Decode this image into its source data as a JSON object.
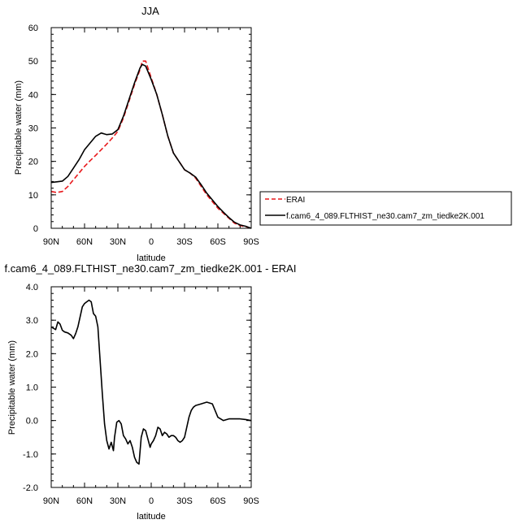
{
  "chart_data": [
    {
      "type": "line",
      "title": "JJA",
      "xlabel": "latitude",
      "ylabel": "Precipitable water (mm)",
      "xlim": [
        90,
        -90
      ],
      "ylim": [
        0,
        60
      ],
      "xticks": [
        90,
        60,
        30,
        0,
        -30,
        -60,
        -90
      ],
      "xtick_labels": [
        "90N",
        "60N",
        "30N",
        "0",
        "30S",
        "60S",
        "90S"
      ],
      "yticks": [
        0,
        10,
        20,
        30,
        40,
        50,
        60
      ],
      "ytick_labels": [
        "0",
        "10",
        "20",
        "30",
        "40",
        "50",
        "60"
      ],
      "legend_position": "right",
      "series": [
        {
          "name": "ERAI",
          "style": "dashed",
          "color": "#e8191c",
          "x": [
            90,
            85,
            80,
            75,
            70,
            65,
            60,
            55,
            50,
            45,
            40,
            35,
            30,
            25,
            20,
            15,
            10,
            8,
            5,
            0,
            -5,
            -10,
            -15,
            -20,
            -25,
            -30,
            -35,
            -40,
            -45,
            -50,
            -55,
            -60,
            -65,
            -70,
            -75,
            -80,
            -85,
            -90
          ],
          "y": [
            11,
            10.7,
            11,
            12.5,
            14.5,
            16.5,
            18.5,
            20.2,
            21.8,
            23.5,
            25.2,
            27,
            29,
            33,
            38,
            43,
            47.5,
            50,
            50,
            45,
            40,
            34,
            27.5,
            22.5,
            20,
            17.5,
            16.5,
            15,
            12.5,
            10,
            8,
            6,
            4.5,
            3,
            1.5,
            0.8,
            0.5,
            0
          ]
        },
        {
          "name": "f.cam6_4_089.FLTHIST_ne30.cam7_zm_tiedke2K.001",
          "style": "solid",
          "color": "#000000",
          "x": [
            90,
            85,
            80,
            75,
            70,
            65,
            60,
            55,
            50,
            45,
            40,
            35,
            30,
            25,
            20,
            15,
            10,
            8,
            5,
            0,
            -5,
            -10,
            -15,
            -20,
            -25,
            -30,
            -35,
            -40,
            -45,
            -50,
            -55,
            -60,
            -65,
            -70,
            -75,
            -80,
            -85,
            -90
          ],
          "y": [
            13.7,
            13.9,
            14.1,
            15.5,
            18,
            20.5,
            23.5,
            25.5,
            27.5,
            28.5,
            28,
            28.2,
            29.5,
            33.5,
            38.5,
            43.5,
            48,
            49,
            48.5,
            44.5,
            40,
            34,
            27.5,
            22.5,
            20,
            17.5,
            16.5,
            15.3,
            13,
            10.5,
            8.5,
            6.5,
            4.8,
            3.2,
            1.8,
            1,
            0.6,
            0
          ]
        }
      ]
    },
    {
      "type": "line",
      "title": "f.cam6_4_089.FLTHIST_ne30.cam7_zm_tiedke2K.001 - ERAI",
      "xlabel": "latitude",
      "ylabel": "Precipitable water (mm)",
      "xlim": [
        90,
        -90
      ],
      "ylim": [
        -2,
        4
      ],
      "xticks": [
        90,
        60,
        30,
        0,
        -30,
        -60,
        -90
      ],
      "xtick_labels": [
        "90N",
        "60N",
        "30N",
        "0",
        "30S",
        "60S",
        "90S"
      ],
      "yticks": [
        -2,
        -1,
        0,
        1,
        2,
        3,
        4
      ],
      "ytick_labels": [
        "-2.0",
        "-1.0",
        "0.0",
        "1.0",
        "2.0",
        "3.0",
        "4.0"
      ],
      "series": [
        {
          "style": "solid",
          "color": "#000000",
          "x": [
            90,
            86,
            84,
            82,
            80,
            78,
            75,
            72,
            70,
            68,
            66,
            64,
            62,
            60,
            58,
            56,
            54,
            52,
            50,
            48,
            46,
            44,
            42,
            40,
            38,
            36,
            34,
            33,
            31,
            29,
            27,
            25,
            23,
            21,
            19,
            17,
            15,
            13,
            11,
            9,
            7,
            5,
            3,
            1,
            0,
            -2,
            -4,
            -6,
            -8,
            -10,
            -12,
            -14,
            -16,
            -18,
            -20,
            -22,
            -24,
            -26,
            -28,
            -30,
            -32,
            -34,
            -36,
            -38,
            -40,
            -45,
            -50,
            -55,
            -60,
            -65,
            -70,
            -75,
            -80,
            -85,
            -90
          ],
          "y": [
            2.8,
            2.72,
            2.95,
            2.88,
            2.7,
            2.65,
            2.62,
            2.55,
            2.45,
            2.6,
            2.8,
            3.1,
            3.4,
            3.5,
            3.55,
            3.6,
            3.55,
            3.2,
            3.12,
            2.8,
            1.8,
            0.8,
            -0.1,
            -0.6,
            -0.85,
            -0.65,
            -0.9,
            -0.5,
            -0.05,
            0,
            -0.1,
            -0.45,
            -0.55,
            -0.7,
            -0.6,
            -0.8,
            -1.1,
            -1.25,
            -1.3,
            -0.5,
            -0.25,
            -0.3,
            -0.55,
            -0.8,
            -0.7,
            -0.6,
            -0.45,
            -0.2,
            -0.25,
            -0.45,
            -0.35,
            -0.4,
            -0.5,
            -0.45,
            -0.45,
            -0.5,
            -0.6,
            -0.65,
            -0.6,
            -0.5,
            -0.2,
            0.1,
            0.3,
            0.4,
            0.45,
            0.5,
            0.55,
            0.5,
            0.1,
            0.0,
            0.05,
            0.05,
            0.05,
            0.03,
            0
          ]
        }
      ]
    }
  ]
}
